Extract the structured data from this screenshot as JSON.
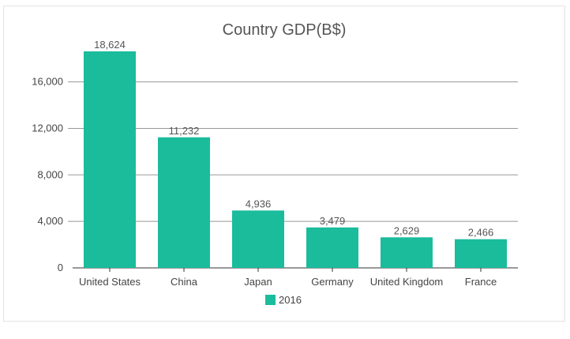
{
  "chart_data": {
    "type": "bar",
    "title": "Country GDP(B$)",
    "xlabel": "",
    "ylabel": "",
    "categories": [
      "United States",
      "China",
      "Japan",
      "Germany",
      "United Kingdom",
      "France"
    ],
    "series": [
      {
        "name": "2016",
        "values": [
          18624,
          11232,
          4936,
          3479,
          2629,
          2466
        ],
        "color": "#1abc9c"
      }
    ],
    "data_labels": [
      "18,624",
      "11,232",
      "4,936",
      "3,479",
      "2,629",
      "2,466"
    ],
    "ylim": [
      0,
      18624
    ],
    "yticks": [
      0,
      4000,
      8000,
      12000,
      16000
    ],
    "ytick_labels": [
      "0",
      "4,000",
      "8,000",
      "12,000",
      "16,000"
    ],
    "grid": true,
    "legend_position": "bottom-center",
    "colors": {
      "bar": "#1abc9c",
      "grid": "#999999",
      "axis": "#333333"
    }
  }
}
